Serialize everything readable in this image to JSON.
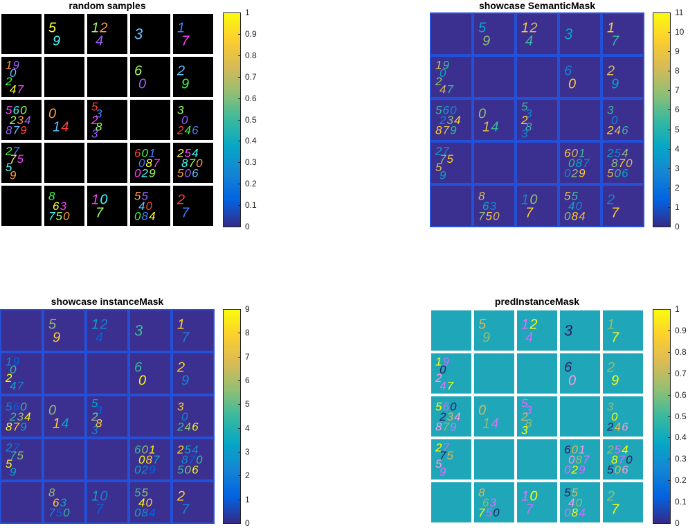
{
  "colors": {
    "parula": [
      "#352a87",
      "#0363e1",
      "#1485d4",
      "#06a7c6",
      "#38b99e",
      "#92bf73",
      "#d9ba56",
      "#fcce2e",
      "#f9fb0e"
    ],
    "panel_bg_mask": "#3b2f8f",
    "panel_bg_pred": "#1fa6b8",
    "separator": "#2450d8",
    "samples_bg": "#000000"
  },
  "chart_data": [
    {
      "type": "heatmap",
      "title": "random samples",
      "grid": "5x5",
      "colorbar_ticks": [
        "0",
        "0.1",
        "0.2",
        "0.3",
        "0.4",
        "0.5",
        "0.6",
        "0.7",
        "0.8",
        "0.9",
        "1"
      ],
      "colorbar_range": [
        0,
        1
      ],
      "cells": [
        [
          "",
          "5 9",
          "12 4",
          "3",
          "1 7"
        ],
        [
          "19 0 2 47",
          "",
          "",
          "6 0",
          "2 9"
        ],
        [
          "560 234 879",
          "0 14",
          "5 3 2 8 3",
          "",
          "3 0 246"
        ],
        [
          "27 75 5 9",
          "",
          "",
          "601 087 029",
          "254 870 506"
        ],
        [
          "",
          "8 63 750",
          "10 7",
          "55 40 084",
          "2 7"
        ]
      ]
    },
    {
      "type": "heatmap",
      "title": "showcase SemanticMask",
      "grid": "5x5",
      "colorbar_ticks": [
        "0",
        "1",
        "2",
        "3",
        "4",
        "5",
        "6",
        "7",
        "8",
        "9",
        "10",
        "11"
      ],
      "colorbar_range": [
        0,
        11
      ]
    },
    {
      "type": "heatmap",
      "title": "showcase instanceMask",
      "grid": "5x5",
      "colorbar_ticks": [
        "0",
        "1",
        "2",
        "3",
        "4",
        "5",
        "6",
        "7",
        "8",
        "9"
      ],
      "colorbar_range": [
        0,
        9
      ]
    },
    {
      "type": "heatmap",
      "title": "predInstanceMask",
      "grid": "5x5",
      "colorbar_ticks": [
        "0",
        "0.1",
        "0.2",
        "0.3",
        "0.4",
        "0.5",
        "0.6",
        "0.7",
        "0.8",
        "0.9",
        "1"
      ],
      "colorbar_range": [
        0,
        1
      ]
    }
  ]
}
